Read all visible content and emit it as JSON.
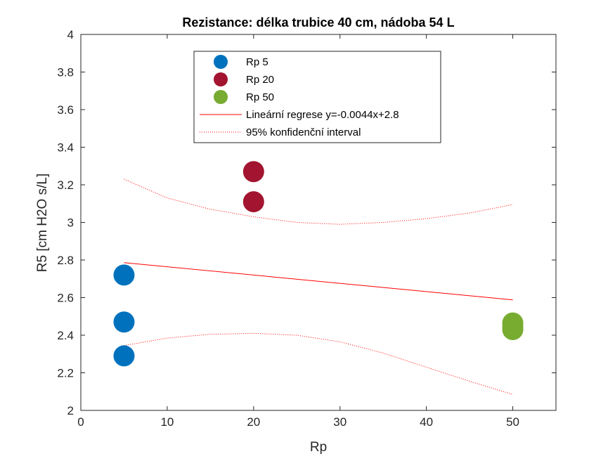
{
  "chart_data": {
    "type": "scatter",
    "title": "Rezistance: délka trubice 40 cm, nádoba 54 L",
    "xlabel": "Rp",
    "ylabel": "R5 [cm H2O s/L]",
    "xlim": [
      0,
      55
    ],
    "ylim": [
      2,
      4
    ],
    "xticks": [
      0,
      10,
      20,
      30,
      40,
      50
    ],
    "yticks": [
      2,
      2.2,
      2.4,
      2.6,
      2.8,
      3,
      3.2,
      3.4,
      3.6,
      3.8,
      4
    ],
    "grid": false,
    "legend_position": "top-center",
    "series": [
      {
        "name": "Rp 5",
        "color": "#0072BD",
        "x": [
          5,
          5,
          5
        ],
        "y": [
          2.72,
          2.47,
          2.29
        ]
      },
      {
        "name": "Rp 20",
        "color": "#A2142F",
        "x": [
          20,
          20
        ],
        "y": [
          3.27,
          3.11
        ]
      },
      {
        "name": "Rp 50",
        "color": "#77AC30",
        "x": [
          50,
          50,
          50
        ],
        "y": [
          2.465,
          2.445,
          2.43
        ]
      }
    ],
    "regression": {
      "name": "Lineární regrese y=-0.0044x+2.8",
      "color": "#FF0000",
      "x": [
        5,
        50
      ],
      "y": [
        2.786,
        2.588
      ]
    },
    "confidence_interval": {
      "name": "95% konfidenční interval",
      "color": "#FF0000",
      "upper": {
        "x": [
          5,
          10,
          15,
          20,
          25,
          30,
          35,
          40,
          45,
          50
        ],
        "y": [
          3.23,
          3.13,
          3.07,
          3.03,
          3.0,
          2.99,
          3.0,
          3.02,
          3.05,
          3.095
        ]
      },
      "lower": {
        "x": [
          5,
          10,
          15,
          20,
          25,
          30,
          35,
          40,
          45,
          50
        ],
        "y": [
          2.345,
          2.385,
          2.405,
          2.41,
          2.4,
          2.365,
          2.305,
          2.23,
          2.155,
          2.085
        ]
      }
    }
  }
}
